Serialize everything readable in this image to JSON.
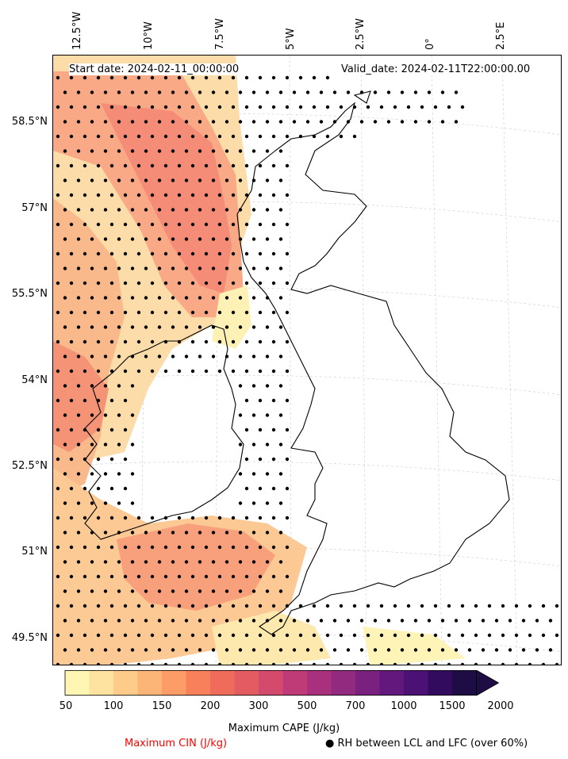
{
  "header": {
    "start_date": "Start date: 2024-02-11_00:00:00",
    "valid_date": "Valid_date: 2024-02-11T22:00:00.00"
  },
  "lon_labels": [
    "12.5°W",
    "10°W",
    "7.5°W",
    "5°W",
    "2.5°W",
    "0°",
    "2.5°E"
  ],
  "lat_labels": [
    "58.5°N",
    "57°N",
    "55.5°N",
    "54°N",
    "52.5°N",
    "51°N",
    "49.5°N"
  ],
  "colorbar": {
    "title": "Maximum CAPE (J/kg)",
    "ticks": [
      "50",
      "100",
      "150",
      "200",
      "300",
      "500",
      "700",
      "1000",
      "1500",
      "2000"
    ],
    "colors": [
      "#fff6b3",
      "#fee3a0",
      "#fecb8a",
      "#fdb577",
      "#fc9c67",
      "#f8805a",
      "#f06c5a",
      "#e45c62",
      "#d34a6d",
      "#bf3b78",
      "#a9307d",
      "#922a7f",
      "#7a217f",
      "#62187c",
      "#4b1174",
      "#330b5e",
      "#1e0c45"
    ]
  },
  "legend": {
    "cin_label": "Maximum CIN (J/kg)",
    "cin_color": "#ff0000",
    "rh_marker": "●",
    "rh_label": "RH between LCL and LFC (over 60%)"
  }
}
